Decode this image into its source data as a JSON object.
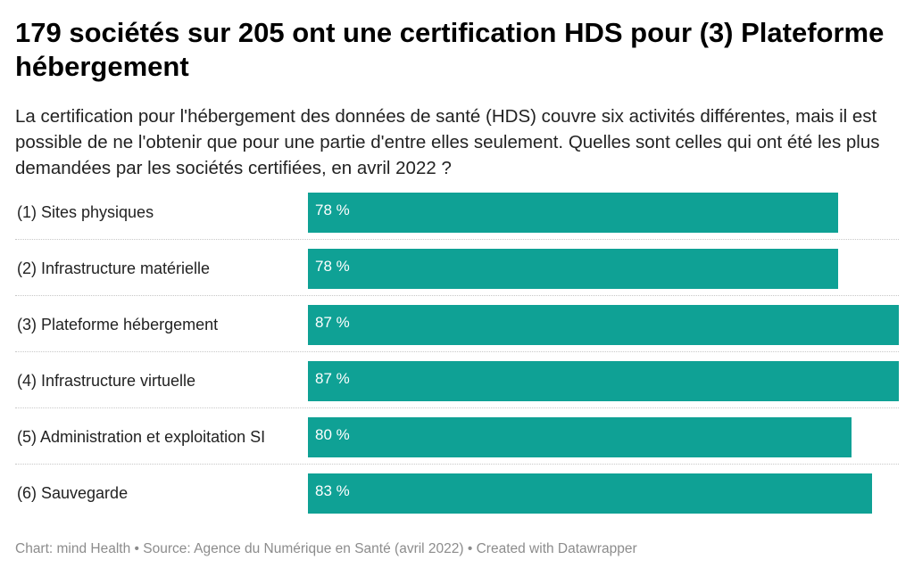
{
  "header": {
    "title": "179 sociétés sur 205 ont une certification HDS pour (3) Plateforme hébergement",
    "subtitle": "La certification pour l'hébergement des données de santé (HDS) couvre six activités différentes, mais il est possible de ne l'obtenir que pour une partie d'entre elles seulement. Quelles sont celles qui ont été les plus demandées par les sociétés certifiées, en avril 2022 ?"
  },
  "footer": {
    "text": "Chart: mind Health • Source: Agence du Numérique en Santé (avril 2022) • Created with Datawrapper"
  },
  "colors": {
    "bar": "#0fa195",
    "bar_label": "#ffffff"
  },
  "chart_data": {
    "type": "bar",
    "orientation": "horizontal",
    "categories": [
      "(1) Sites physiques",
      "(2) Infrastructure matérielle",
      "(3) Plateforme hébergement",
      "(4) Infrastructure virtuelle",
      "(5) Administration et exploitation SI",
      "(6) Sauvegarde"
    ],
    "values": [
      78,
      78,
      87,
      87,
      80,
      83
    ],
    "value_labels": [
      "78 %",
      "78 %",
      "87 %",
      "87 %",
      "80 %",
      "83 %"
    ],
    "xlim": [
      0,
      87
    ],
    "grid": false,
    "legend": "none"
  }
}
